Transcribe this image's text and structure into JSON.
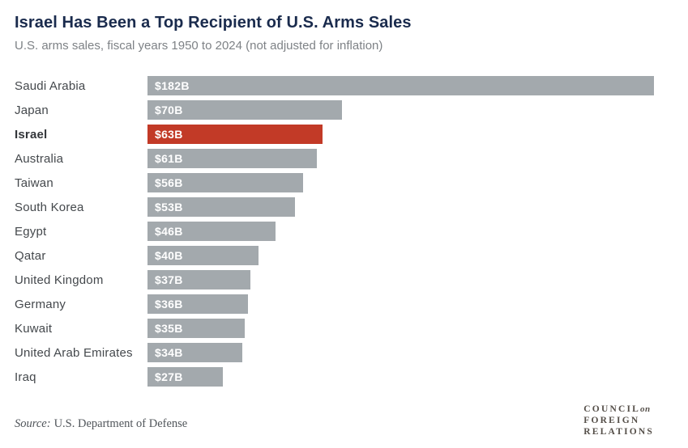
{
  "header": {
    "title": "Israel Has Been a Top Recipient of U.S. Arms Sales",
    "subtitle": "U.S. arms sales, fiscal years 1950 to 2024 (not adjusted for inflation)"
  },
  "chart_data": {
    "type": "bar",
    "orientation": "horizontal",
    "title": "Israel Has Been a Top Recipient of U.S. Arms Sales",
    "subtitle": "U.S. arms sales, fiscal years 1950 to 2024 (not adjusted for inflation)",
    "unit": "USD billions",
    "xlim": [
      0,
      182
    ],
    "grid": false,
    "legend": false,
    "categories": [
      "Saudi Arabia",
      "Japan",
      "Israel",
      "Australia",
      "Taiwan",
      "South Korea",
      "Egypt",
      "Qatar",
      "United Kingdom",
      "Germany",
      "Kuwait",
      "United Arab Emirates",
      "Iraq"
    ],
    "values": [
      182,
      70,
      63,
      61,
      56,
      53,
      46,
      40,
      37,
      36,
      35,
      34,
      27
    ],
    "value_labels": [
      "$182B",
      "$70B",
      "$63B",
      "$61B",
      "$56B",
      "$53B",
      "$46B",
      "$40B",
      "$37B",
      "$36B",
      "$35B",
      "$34B",
      "$27B"
    ],
    "highlighted_category": "Israel",
    "colors": {
      "bar_default": "#a3a9ad",
      "bar_highlight": "#c23a27",
      "value_label": "#ffffff"
    }
  },
  "footer": {
    "source_label": "Source:",
    "source_text": "U.S. Department of Defense",
    "logo": {
      "council": "COUNCIL",
      "on": "on",
      "foreign": "FOREIGN",
      "relations": "RELATIONS"
    }
  },
  "colors": {
    "title": "#1a2b4d",
    "subtitle": "#7e8286",
    "category_label": "#44484c",
    "source": "#50555a",
    "logo": "#554f49",
    "background": "#ffffff"
  }
}
